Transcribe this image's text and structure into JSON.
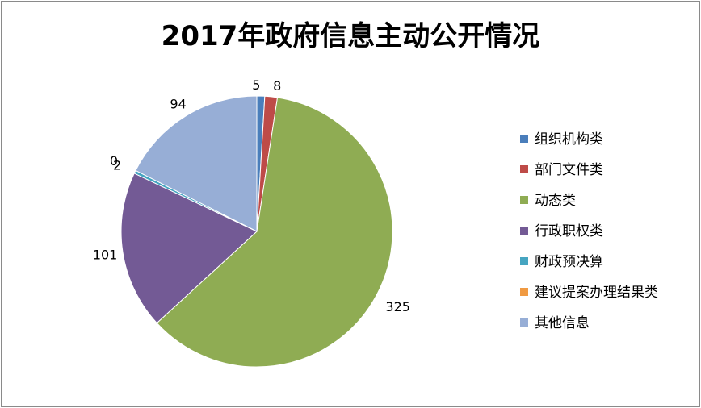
{
  "chart_data": {
    "type": "pie",
    "title": "2017年政府信息主动公开情况",
    "categories": [
      "组织机构类",
      "部门文件类",
      "动态类",
      "行政职权类",
      "财政预决算",
      "建议提案办理结果类",
      "其他信息"
    ],
    "values": [
      5,
      8,
      325,
      101,
      2,
      0,
      94
    ],
    "data_labels": [
      "5",
      "8",
      "325",
      "101",
      "2",
      "0",
      "94"
    ],
    "colors": [
      "#4a7ebb",
      "#be4b48",
      "#8fac53",
      "#735a95",
      "#46a5c1",
      "#f09a42",
      "#97aed6"
    ],
    "legend_position": "right",
    "start_angle_deg": 0,
    "direction": "clockwise"
  }
}
